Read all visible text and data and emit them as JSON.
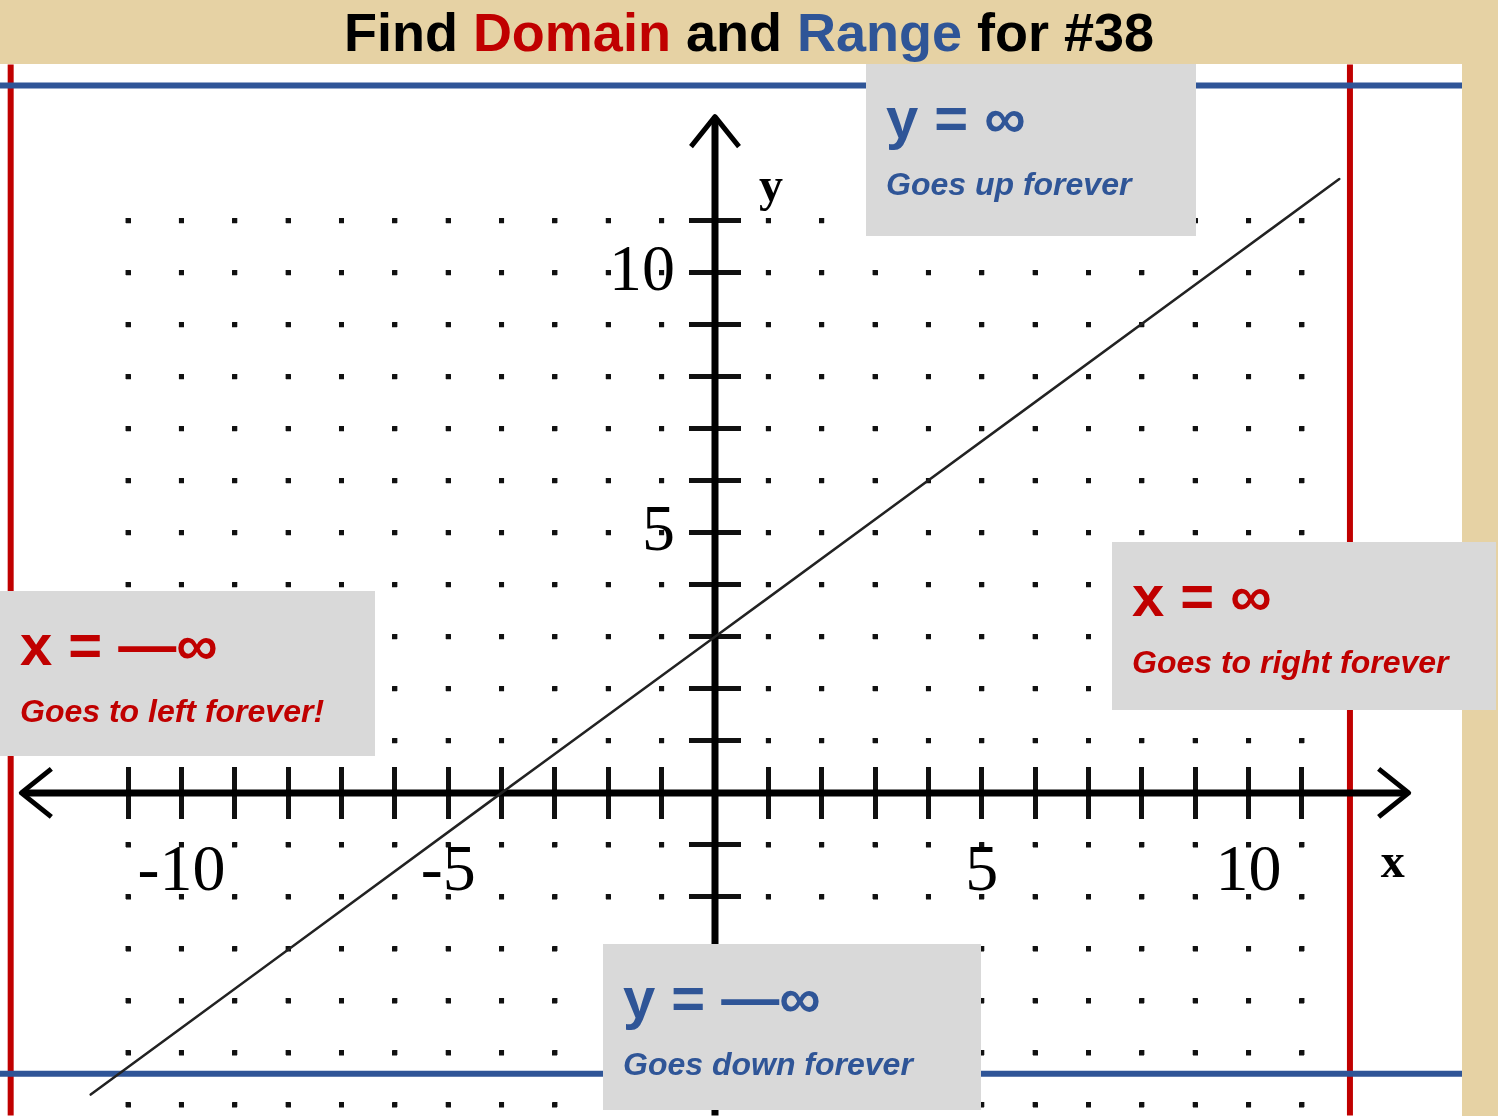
{
  "chart_data": {
    "type": "line",
    "title": "Find Domain and Range for #38",
    "xlabel": "x",
    "ylabel": "y",
    "x": [
      -11.7,
      -4,
      0,
      11.7
    ],
    "values": [
      -5.8,
      0,
      3,
      11.8
    ],
    "color": "#222222",
    "marker": "none",
    "line_style": "solid",
    "xlim": [
      -13.4,
      14.0
    ],
    "ylim": [
      -6.2,
      14.0
    ],
    "xticks": [
      {
        "value": -11,
        "label": null
      },
      -10,
      {
        "value": -9,
        "label": null
      },
      {
        "value": -8,
        "label": null
      },
      {
        "value": -7,
        "label": null
      },
      {
        "value": -6,
        "label": null
      },
      -5,
      {
        "value": -4,
        "label": null
      },
      {
        "value": -3,
        "label": null
      },
      {
        "value": -2,
        "label": null
      },
      {
        "value": -1,
        "label": null
      },
      {
        "value": 0,
        "label": null
      },
      {
        "value": 1,
        "label": null
      },
      {
        "value": 2,
        "label": null
      },
      {
        "value": 3,
        "label": null
      },
      {
        "value": 4,
        "label": null
      },
      5,
      {
        "value": 6,
        "label": null
      },
      {
        "value": 7,
        "label": null
      },
      {
        "value": 8,
        "label": null
      },
      {
        "value": 9,
        "label": null
      },
      10,
      {
        "value": 11,
        "label": null
      }
    ],
    "yticks": [
      {
        "value": -6,
        "label": null
      },
      {
        "value": -5,
        "label": null
      },
      {
        "value": -4,
        "label": null
      },
      {
        "value": -3,
        "label": null
      },
      {
        "value": -2,
        "label": null
      },
      {
        "value": -1,
        "label": null
      },
      {
        "value": 0,
        "label": null
      },
      {
        "value": 1,
        "label": null
      },
      {
        "value": 2,
        "label": null
      },
      {
        "value": 3,
        "label": null
      },
      {
        "value": 4,
        "label": null
      },
      5,
      {
        "value": 6,
        "label": null
      },
      {
        "value": 7,
        "label": null
      },
      {
        "value": 8,
        "label": null
      },
      {
        "value": 9,
        "label": null
      },
      10,
      {
        "value": 11,
        "label": null
      }
    ],
    "grid": true,
    "ref_lines": [
      {
        "axis": "x",
        "value": -13.2,
        "color": "#c00000"
      },
      {
        "axis": "x",
        "value": 11.9,
        "color": "#c00000"
      },
      {
        "axis": "y",
        "value": 13.6,
        "color": "#2f5597"
      },
      {
        "axis": "y",
        "value": -5.4,
        "color": "#2f5597"
      }
    ],
    "annotations": [
      "y = ∞",
      "Goes up forever",
      "x = ∞",
      "Goes to right forever",
      "y = —∞",
      "Goes down forever",
      "x = —∞",
      "Goes to left forever!"
    ]
  }
}
